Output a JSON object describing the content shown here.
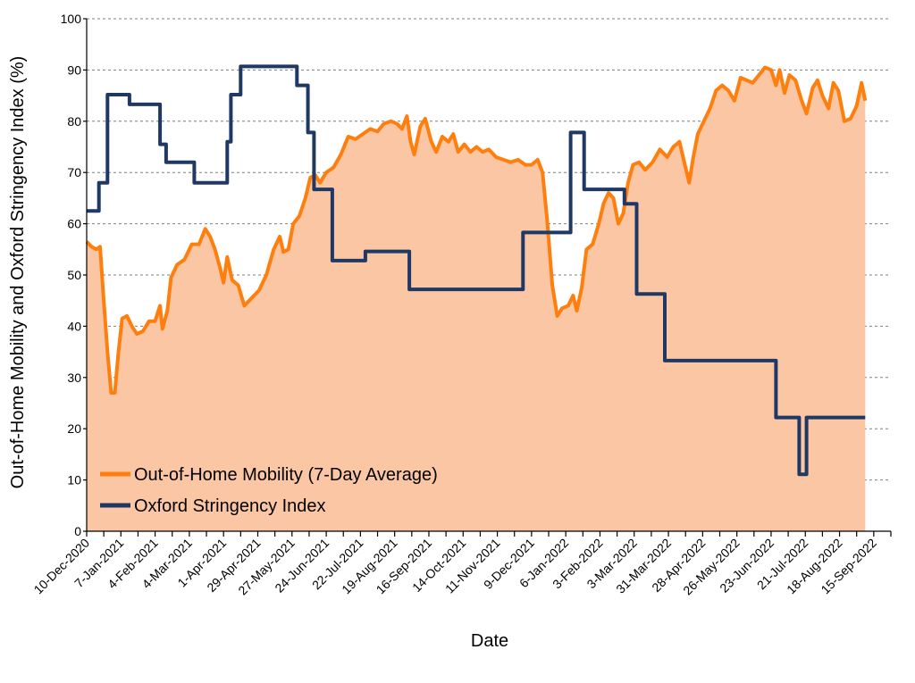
{
  "chart_data": {
    "type": "line",
    "title": "",
    "xlabel": "Date",
    "ylabel": "Out-of-Home Mobility and Oxford Stringency Index (%)",
    "ylim": [
      0,
      100
    ],
    "yticks": [
      0,
      10,
      20,
      30,
      40,
      50,
      60,
      70,
      80,
      90,
      100
    ],
    "xlim": [
      "2020-12-10",
      "2022-09-29"
    ],
    "xtick_labels": [
      "10-Dec-2020",
      "7-Jan-2021",
      "4-Feb-2021",
      "4-Mar-2021",
      "1-Apr-2021",
      "29-Apr-2021",
      "27-May-2021",
      "24-Jun-2021",
      "22-Jul-2021",
      "19-Aug-2021",
      "16-Sep-2021",
      "14-Oct-2021",
      "11-Nov-2021",
      "9-Dec-2021",
      "6-Jan-2022",
      "3-Feb-2022",
      "3-Mar-2022",
      "31-Mar-2022",
      "28-Apr-2022",
      "26-May-2022",
      "23-Jun-2022",
      "21-Jul-2022",
      "18-Aug-2022",
      "15-Sep-2022"
    ],
    "grid": true,
    "legend": "bottom-left",
    "series": [
      {
        "name": "Out-of-Home Mobility (7-Day Average)",
        "color": "#ff7f0e",
        "fill": "#fbc6a3",
        "style": "line-with-area",
        "points": [
          [
            "2020-12-10",
            56.5
          ],
          [
            "2020-12-14",
            55.5
          ],
          [
            "2020-12-18",
            55
          ],
          [
            "2020-12-21",
            55.5
          ],
          [
            "2020-12-24",
            45
          ],
          [
            "2020-12-27",
            35
          ],
          [
            "2020-12-30",
            27
          ],
          [
            "2021-01-02",
            27
          ],
          [
            "2021-01-05",
            35
          ],
          [
            "2021-01-08",
            41.5
          ],
          [
            "2021-01-12",
            42
          ],
          [
            "2021-01-16",
            40
          ],
          [
            "2021-01-20",
            38.5
          ],
          [
            "2021-01-25",
            39
          ],
          [
            "2021-01-30",
            41
          ],
          [
            "2021-02-04",
            41
          ],
          [
            "2021-02-08",
            44
          ],
          [
            "2021-02-10",
            39.5
          ],
          [
            "2021-02-14",
            43
          ],
          [
            "2021-02-17",
            49.5
          ],
          [
            "2021-02-22",
            52
          ],
          [
            "2021-02-28",
            53
          ],
          [
            "2021-03-06",
            56
          ],
          [
            "2021-03-12",
            56
          ],
          [
            "2021-03-17",
            59
          ],
          [
            "2021-03-21",
            57.5
          ],
          [
            "2021-03-25",
            55
          ],
          [
            "2021-03-29",
            51.5
          ],
          [
            "2021-04-01",
            48.5
          ],
          [
            "2021-04-04",
            53.5
          ],
          [
            "2021-04-08",
            49
          ],
          [
            "2021-04-13",
            48
          ],
          [
            "2021-04-18",
            44
          ],
          [
            "2021-04-24",
            45.5
          ],
          [
            "2021-04-30",
            47
          ],
          [
            "2021-05-06",
            50
          ],
          [
            "2021-05-12",
            55
          ],
          [
            "2021-05-17",
            57.5
          ],
          [
            "2021-05-20",
            54.5
          ],
          [
            "2021-05-24",
            55
          ],
          [
            "2021-05-28",
            60
          ],
          [
            "2021-06-02",
            61.5
          ],
          [
            "2021-06-07",
            65
          ],
          [
            "2021-06-11",
            69
          ],
          [
            "2021-06-15",
            69.5
          ],
          [
            "2021-06-19",
            68
          ],
          [
            "2021-06-24",
            70
          ],
          [
            "2021-06-30",
            71
          ],
          [
            "2021-07-06",
            73.5
          ],
          [
            "2021-07-12",
            77
          ],
          [
            "2021-07-18",
            76.5
          ],
          [
            "2021-07-24",
            77.5
          ],
          [
            "2021-07-30",
            78.5
          ],
          [
            "2021-08-05",
            78
          ],
          [
            "2021-08-10",
            79.5
          ],
          [
            "2021-08-16",
            80
          ],
          [
            "2021-08-21",
            79.5
          ],
          [
            "2021-08-25",
            78.5
          ],
          [
            "2021-08-29",
            81
          ],
          [
            "2021-09-01",
            76
          ],
          [
            "2021-09-04",
            73.5
          ],
          [
            "2021-09-09",
            79
          ],
          [
            "2021-09-13",
            80.5
          ],
          [
            "2021-09-18",
            76
          ],
          [
            "2021-09-22",
            74
          ],
          [
            "2021-09-27",
            77
          ],
          [
            "2021-10-02",
            76
          ],
          [
            "2021-10-06",
            77.5
          ],
          [
            "2021-10-10",
            74
          ],
          [
            "2021-10-15",
            75.5
          ],
          [
            "2021-10-20",
            74
          ],
          [
            "2021-10-25",
            75
          ],
          [
            "2021-10-30",
            74
          ],
          [
            "2021-11-04",
            74.5
          ],
          [
            "2021-11-10",
            73
          ],
          [
            "2021-11-16",
            72.5
          ],
          [
            "2021-11-22",
            72
          ],
          [
            "2021-11-28",
            72.5
          ],
          [
            "2021-12-04",
            71.5
          ],
          [
            "2021-12-09",
            71.5
          ],
          [
            "2021-12-14",
            72.5
          ],
          [
            "2021-12-18",
            70
          ],
          [
            "2021-12-22",
            60
          ],
          [
            "2021-12-26",
            48
          ],
          [
            "2021-12-30",
            42
          ],
          [
            "2022-01-03",
            43.5
          ],
          [
            "2022-01-08",
            44
          ],
          [
            "2022-01-12",
            46
          ],
          [
            "2022-01-15",
            43
          ],
          [
            "2022-01-19",
            47.5
          ],
          [
            "2022-01-23",
            55
          ],
          [
            "2022-01-28",
            56
          ],
          [
            "2022-02-02",
            60
          ],
          [
            "2022-02-06",
            64
          ],
          [
            "2022-02-10",
            66
          ],
          [
            "2022-02-14",
            65
          ],
          [
            "2022-02-18",
            60
          ],
          [
            "2022-02-22",
            62
          ],
          [
            "2022-02-26",
            68
          ],
          [
            "2022-03-02",
            71.5
          ],
          [
            "2022-03-07",
            72
          ],
          [
            "2022-03-12",
            70.5
          ],
          [
            "2022-03-18",
            72
          ],
          [
            "2022-03-24",
            74.5
          ],
          [
            "2022-03-30",
            73
          ],
          [
            "2022-04-04",
            75
          ],
          [
            "2022-04-09",
            76
          ],
          [
            "2022-04-13",
            72
          ],
          [
            "2022-04-17",
            68
          ],
          [
            "2022-04-20",
            72.5
          ],
          [
            "2022-04-24",
            77.5
          ],
          [
            "2022-04-29",
            80
          ],
          [
            "2022-05-04",
            82.5
          ],
          [
            "2022-05-09",
            86
          ],
          [
            "2022-05-14",
            87
          ],
          [
            "2022-05-19",
            86
          ],
          [
            "2022-05-24",
            84
          ],
          [
            "2022-05-29",
            88.5
          ],
          [
            "2022-06-03",
            88
          ],
          [
            "2022-06-08",
            87.5
          ],
          [
            "2022-06-13",
            89
          ],
          [
            "2022-06-18",
            90.5
          ],
          [
            "2022-06-23",
            90
          ],
          [
            "2022-06-27",
            87
          ],
          [
            "2022-06-30",
            90
          ],
          [
            "2022-07-04",
            85.5
          ],
          [
            "2022-07-08",
            89
          ],
          [
            "2022-07-13",
            88
          ],
          [
            "2022-07-18",
            84
          ],
          [
            "2022-07-22",
            81.5
          ],
          [
            "2022-07-27",
            86.5
          ],
          [
            "2022-07-31",
            88
          ],
          [
            "2022-08-04",
            85
          ],
          [
            "2022-08-09",
            82.5
          ],
          [
            "2022-08-13",
            87.5
          ],
          [
            "2022-08-17",
            86
          ],
          [
            "2022-08-22",
            80
          ],
          [
            "2022-08-27",
            80.5
          ],
          [
            "2022-09-01",
            83
          ],
          [
            "2022-09-05",
            87.5
          ],
          [
            "2022-09-08",
            84
          ]
        ]
      },
      {
        "name": "Oxford Stringency Index",
        "color": "#1f3864",
        "style": "step",
        "points": [
          [
            "2020-12-10",
            62.5
          ],
          [
            "2020-12-20",
            62.5
          ],
          [
            "2020-12-20",
            68
          ],
          [
            "2020-12-27",
            68
          ],
          [
            "2020-12-27",
            85.2
          ],
          [
            "2021-01-14",
            85.2
          ],
          [
            "2021-01-14",
            83.3
          ],
          [
            "2021-02-08",
            83.3
          ],
          [
            "2021-02-08",
            75.5
          ],
          [
            "2021-02-13",
            75.5
          ],
          [
            "2021-02-13",
            72
          ],
          [
            "2021-03-08",
            72
          ],
          [
            "2021-03-08",
            68
          ],
          [
            "2021-04-04",
            68
          ],
          [
            "2021-04-04",
            76
          ],
          [
            "2021-04-07",
            76
          ],
          [
            "2021-04-07",
            85.2
          ],
          [
            "2021-04-15",
            85.2
          ],
          [
            "2021-04-15",
            90.7
          ],
          [
            "2021-05-31",
            90.7
          ],
          [
            "2021-05-31",
            87
          ],
          [
            "2021-06-09",
            87
          ],
          [
            "2021-06-09",
            77.8
          ],
          [
            "2021-06-14",
            77.8
          ],
          [
            "2021-06-14",
            66.7
          ],
          [
            "2021-06-29",
            66.7
          ],
          [
            "2021-06-29",
            52.8
          ],
          [
            "2021-07-26",
            52.8
          ],
          [
            "2021-07-26",
            54.6
          ],
          [
            "2021-08-31",
            54.6
          ],
          [
            "2021-08-31",
            47.2
          ],
          [
            "2021-12-02",
            47.2
          ],
          [
            "2021-12-02",
            58.3
          ],
          [
            "2022-01-10",
            58.3
          ],
          [
            "2022-01-10",
            77.8
          ],
          [
            "2022-01-21",
            77.8
          ],
          [
            "2022-01-21",
            66.7
          ],
          [
            "2022-02-23",
            66.7
          ],
          [
            "2022-02-23",
            63.9
          ],
          [
            "2022-03-05",
            63.9
          ],
          [
            "2022-03-05",
            46.3
          ],
          [
            "2022-03-28",
            46.3
          ],
          [
            "2022-03-28",
            33.3
          ],
          [
            "2022-06-27",
            33.3
          ],
          [
            "2022-06-27",
            22.2
          ],
          [
            "2022-07-16",
            22.2
          ],
          [
            "2022-07-16",
            11.1
          ],
          [
            "2022-07-22",
            11.1
          ],
          [
            "2022-07-22",
            22.2
          ],
          [
            "2022-09-08",
            22.2
          ]
        ]
      }
    ]
  }
}
